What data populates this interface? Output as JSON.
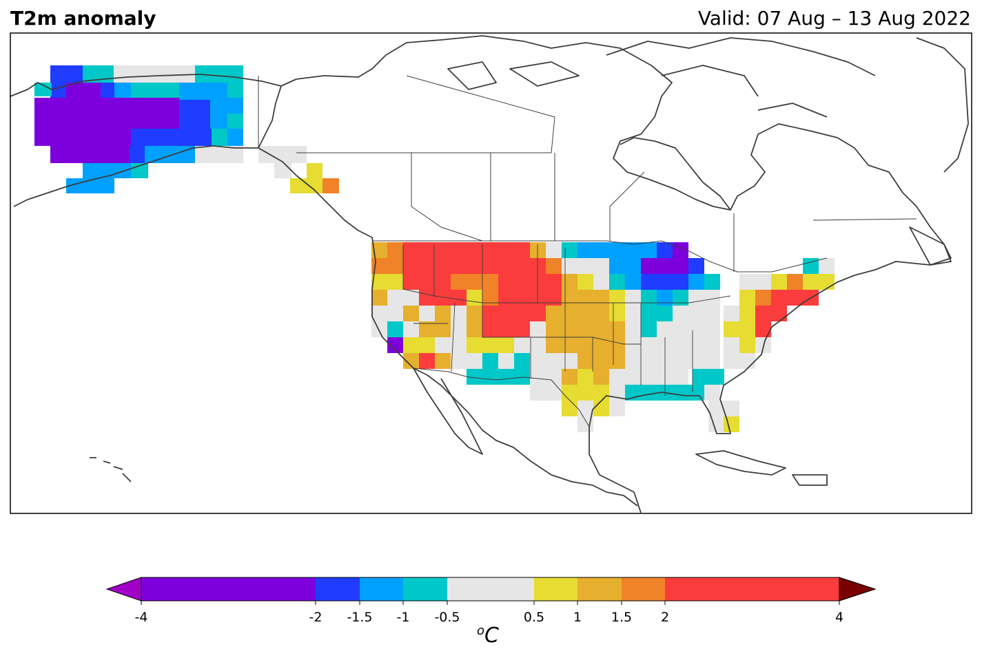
{
  "header": {
    "title": "T2m anomaly",
    "valid": "Valid: 07 Aug – 13 Aug 2022"
  },
  "colorbar": {
    "unit_sup": "o",
    "unit_text": "C",
    "levels": [
      -4,
      -2,
      -1.5,
      -1,
      -0.5,
      0.5,
      1,
      1.5,
      2,
      4
    ],
    "tick_labels": [
      "-4",
      "-2",
      "-1.5",
      "-1",
      "-0.5",
      "0.5",
      "1",
      "1.5",
      "2",
      "4"
    ],
    "colors": [
      "#7d00dc",
      "#1f3cff",
      "#00a0ff",
      "#00c8c8",
      "#e6e6e6",
      "#e6dc32",
      "#e6af2d",
      "#f08228",
      "#fa3c3c"
    ],
    "under_color": "#a000c8",
    "over_color": "#780000"
  },
  "legend_colors": {
    "neutral": "#e6e6e6",
    "coastline": "#3c3c3c"
  }
}
